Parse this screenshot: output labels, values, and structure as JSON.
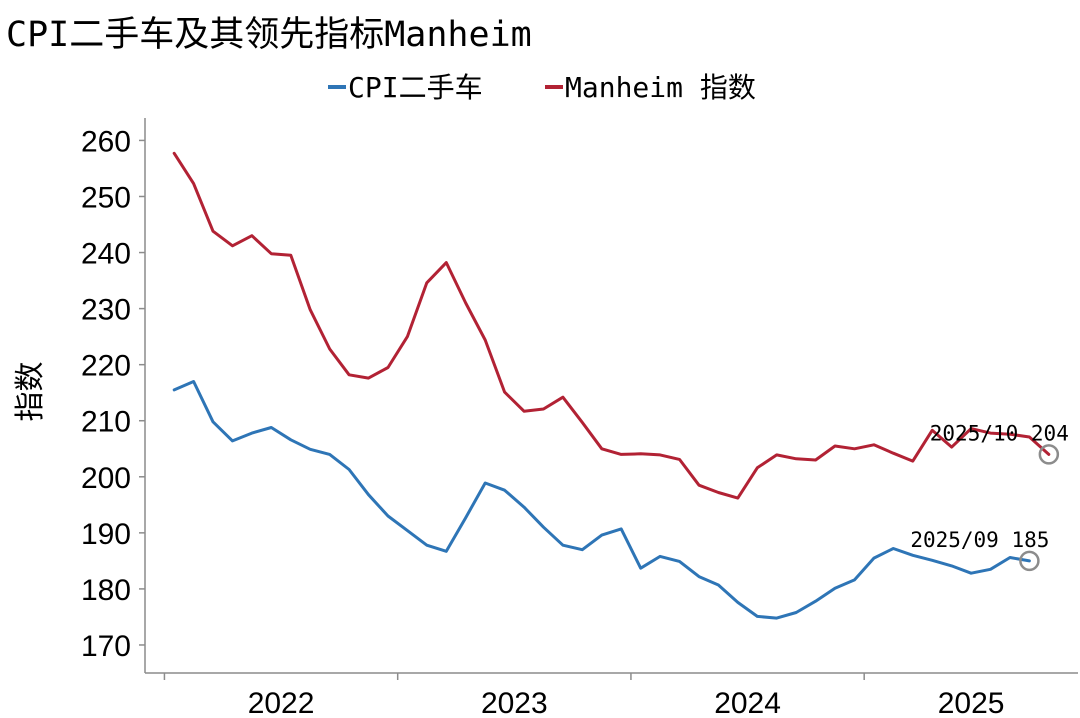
{
  "title": "CPI二手车及其领先指标Manheim",
  "chart_data": {
    "type": "line",
    "title": "CPI二手车及其领先指标Manheim",
    "ylabel": "指数",
    "xlabel": "",
    "ylim": [
      165,
      264
    ],
    "y_ticks": [
      170,
      180,
      190,
      200,
      210,
      220,
      230,
      240,
      250,
      260
    ],
    "x_ticks": [
      "2022",
      "2023",
      "2024",
      "2025"
    ],
    "x_range": [
      "2021-12",
      "2025-12"
    ],
    "legend_position": "top-center",
    "grid": false,
    "series": [
      {
        "name": "CPI二手车",
        "color": "#2E75B6",
        "x": [
          "2022-01",
          "2022-02",
          "2022-03",
          "2022-04",
          "2022-05",
          "2022-06",
          "2022-07",
          "2022-08",
          "2022-09",
          "2022-10",
          "2022-11",
          "2022-12",
          "2023-01",
          "2023-02",
          "2023-03",
          "2023-04",
          "2023-05",
          "2023-06",
          "2023-07",
          "2023-08",
          "2023-09",
          "2023-10",
          "2023-11",
          "2023-12",
          "2024-01",
          "2024-02",
          "2024-03",
          "2024-04",
          "2024-05",
          "2024-06",
          "2024-07",
          "2024-08",
          "2024-09",
          "2024-10",
          "2024-11",
          "2024-12",
          "2025-01",
          "2025-02",
          "2025-03",
          "2025-04",
          "2025-05",
          "2025-06",
          "2025-07",
          "2025-08",
          "2025-09"
        ],
        "values": [
          215.5,
          217.0,
          209.8,
          206.4,
          207.8,
          208.8,
          206.6,
          204.9,
          204.0,
          201.3,
          196.8,
          193.0,
          190.4,
          187.8,
          186.7,
          192.7,
          198.9,
          197.6,
          194.6,
          191.0,
          187.8,
          187.0,
          189.6,
          190.7,
          183.7,
          185.8,
          184.9,
          182.2,
          180.7,
          177.6,
          175.1,
          174.8,
          175.8,
          177.8,
          180.1,
          181.6,
          185.5,
          187.2,
          186.0,
          185.1,
          184.1,
          182.8,
          183.5,
          185.6,
          185.0
        ]
      },
      {
        "name": "Manheim 指数",
        "color": "#B22234",
        "x": [
          "2022-01",
          "2022-02",
          "2022-03",
          "2022-04",
          "2022-05",
          "2022-06",
          "2022-07",
          "2022-08",
          "2022-09",
          "2022-10",
          "2022-11",
          "2022-12",
          "2023-01",
          "2023-02",
          "2023-03",
          "2023-04",
          "2023-05",
          "2023-06",
          "2023-07",
          "2023-08",
          "2023-09",
          "2023-10",
          "2023-11",
          "2023-12",
          "2024-01",
          "2024-02",
          "2024-03",
          "2024-04",
          "2024-05",
          "2024-06",
          "2024-07",
          "2024-08",
          "2024-09",
          "2024-10",
          "2024-11",
          "2024-12",
          "2025-01",
          "2025-02",
          "2025-03",
          "2025-04",
          "2025-05",
          "2025-06",
          "2025-07",
          "2025-08",
          "2025-09",
          "2025-10"
        ],
        "values": [
          257.7,
          252.3,
          243.8,
          241.2,
          243.0,
          239.8,
          239.5,
          229.8,
          222.8,
          218.2,
          217.6,
          219.5,
          225.0,
          234.6,
          238.2,
          231.0,
          224.4,
          215.1,
          211.7,
          212.1,
          214.2,
          209.7,
          205.0,
          204.0,
          204.1,
          203.9,
          203.1,
          198.5,
          197.2,
          196.2,
          201.6,
          203.9,
          203.2,
          203.0,
          205.5,
          205.0,
          205.7,
          204.2,
          202.8,
          208.3,
          205.3,
          208.6,
          207.8,
          207.6,
          207.1,
          204.0
        ]
      }
    ],
    "annotations": [
      {
        "series": "Manheim 指数",
        "x": "2025-10",
        "y": 204,
        "label": "2025/10 204"
      },
      {
        "series": "CPI二手车",
        "x": "2025-09",
        "y": 185,
        "label": "2025/09 185"
      }
    ]
  }
}
